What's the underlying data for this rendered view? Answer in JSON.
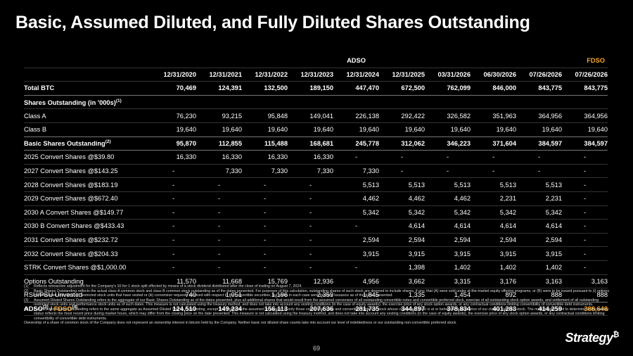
{
  "title": "Basic, Assumed Diluted, and Fully Diluted Shares Outstanding",
  "group_headers": {
    "adso": "ADSO",
    "fdso": "FDSO"
  },
  "columns": [
    "12/31/2020",
    "12/31/2021",
    "12/31/2022",
    "12/31/2023",
    "12/31/2024",
    "12/31/2025",
    "03/31/2026",
    "06/30/2026",
    "07/26/2026",
    "07/26/2026"
  ],
  "rows": {
    "total_btc": {
      "label": "Total BTC",
      "values": [
        "70,469",
        "124,391",
        "132,500",
        "189,150",
        "447,470",
        "672,500",
        "762,099",
        "846,000",
        "843,775",
        "843,775"
      ]
    },
    "shares_header": {
      "label": "Shares Outstanding (in '000s)",
      "sup": "(1)"
    },
    "class_a": {
      "label": "Class A",
      "values": [
        "76,230",
        "93,215",
        "95,848",
        "149,041",
        "226,138",
        "292,422",
        "326,582",
        "351,963",
        "364,956",
        "364,956"
      ]
    },
    "class_b": {
      "label": "Class B",
      "values": [
        "19,640",
        "19,640",
        "19,640",
        "19,640",
        "19,640",
        "19,640",
        "19,640",
        "19,640",
        "19,640",
        "19,640"
      ]
    },
    "basic": {
      "label": "Basic Shares Outstanding",
      "sup": "(2)",
      "values": [
        "95,870",
        "112,855",
        "115,488",
        "168,681",
        "245,778",
        "312,062",
        "346,223",
        "371,604",
        "384,597",
        "384,597"
      ]
    },
    "conv_2025": {
      "label": "2025 Convert Shares @$39.80",
      "values": [
        "16,330",
        "16,330",
        "16,330",
        "16,330",
        "-",
        "-",
        "-",
        "-",
        "-",
        "-"
      ]
    },
    "conv_2027": {
      "label": "2027 Convert Shares @$143.25",
      "values": [
        "-",
        "7,330",
        "7,330",
        "7,330",
        "7,330",
        "-",
        "-",
        "-",
        "-",
        "-"
      ]
    },
    "conv_2028": {
      "label": "2028 Convert Shares @$183.19",
      "values": [
        "-",
        "-",
        "-",
        "-",
        "5,513",
        "5,513",
        "5,513",
        "5,513",
        "5,513",
        "-"
      ]
    },
    "conv_2029": {
      "label": "2029 Convert Shares @$672.40",
      "values": [
        "-",
        "-",
        "-",
        "-",
        "4,462",
        "4,462",
        "4,462",
        "2,231",
        "2,231",
        "-"
      ]
    },
    "conv_2030a": {
      "label": "2030 A Convert Shares @$149.77",
      "values": [
        "-",
        "-",
        "-",
        "-",
        "5,342",
        "5,342",
        "5,342",
        "5,342",
        "5,342",
        "-"
      ]
    },
    "conv_2030b": {
      "label": "2030 B Convert Shares @$433.43",
      "values": [
        "-",
        "-",
        "-",
        "-",
        "-",
        "4,614",
        "4,614",
        "4,614",
        "4,614",
        "-"
      ]
    },
    "conv_2031": {
      "label": "2031 Convert Shares @$232.72",
      "values": [
        "-",
        "-",
        "-",
        "-",
        "2,594",
        "2,594",
        "2,594",
        "2,594",
        "2,594",
        "-"
      ]
    },
    "conv_2032": {
      "label": "2032 Convert Shares @$204.33",
      "values": [
        "-",
        "-",
        "-",
        "-",
        "3,915",
        "3,915",
        "3,915",
        "3,915",
        "3,915",
        "-"
      ]
    },
    "strk": {
      "label": "STRK Convert Shares @$1,000.00",
      "values": [
        "-",
        "-",
        "-",
        "-",
        "-",
        "1,398",
        "1,402",
        "1,402",
        "1,402",
        "-"
      ]
    },
    "options": {
      "label": "Options Outstanding",
      "values": [
        "11,570",
        "11,668",
        "15,769",
        "12,936",
        "4,956",
        "3,662",
        "3,315",
        "3,176",
        "3,163",
        "3,163"
      ]
    },
    "rsu": {
      "label": "RSU/PSU Unvested",
      "values": [
        "740",
        "1,051",
        "1,196",
        "2,359",
        "1,845",
        "1,335",
        "1,454",
        "892",
        "888",
        "888"
      ]
    },
    "total": {
      "label_a": "ADSO",
      "sup_a": "(3)",
      "sep": " / ",
      "label_b": "FDSO",
      "sup_b": "(4)",
      "values": [
        "124,510",
        "149,234",
        "156,113",
        "207,636",
        "281,735",
        "344,897",
        "378,834",
        "401,283",
        "414,259",
        "388,648"
      ]
    }
  },
  "footnotes": [
    {
      "num": "(1)",
      "text": "Reflects retroactive adjustment for the Company's 10-for-1 stock split effected by means of a stock dividend distributed after the close of trading on August 7, 2024."
    },
    {
      "num": "(2)",
      "text": "Basic Shares Outstanding reflects the actual class A common stock and class B common stock outstanding as of the dates presented. For purposes of this calculation, outstanding shares of such stock are deemed to include shares, if any, that (A) were sold under at-the-market equity offering programs, or (B) were to be issued pursuant to (i) options that had been exercised, (ii) restricted stock units that have vested or (iii) conversion requests received with respect to the convertible securities, but which in each case were pending issuance as of the dates presented."
    },
    {
      "num": "(3)",
      "text": "Assumed Diluted Shares Outstanding refers to the aggregate of our Basic Shares Outstanding as of the dates presented, plus all additional shares that would result from the assumed conversion of all outstanding convertible notes and convertible preferred stock, exercise of all outstanding stock option awards, and settlement of all outstanding restricted stock units and performance stock units as of such dates. This measure is not calculated using the treasury method, and does not take into account any vesting conditions (in the case of equity awards), the exercise price of any stock option awards, or any contractual conditions limiting convertibility of convertible debt instruments."
    },
    {
      "num": "(4)",
      "text": "Fully Diluted Shares Outstanding refers to the same aggregate as Assumed Diluted Shares Outstanding, except that it reflects the assumed conversion of only those convertible notes and convertible preferred stock whose conversion price is at or below the market price of our class A common stock. The market price used to determine in-the-money status reflects the most recent price during market hours, which may differ from the closing price on the date presented. This measure is not calculated using the treasury method, and does not take into account any vesting conditions (in the case of equity awards), the exercise price of any stock option awards, or any contractual conditions limiting convertibility of convertible debt instruments."
    }
  ],
  "ownership_note": "Ownership of a share of common stock of the Company does not represent an ownership interest in bitcoin held by the Company. Neither basic nor diluted share counts take into account our level of indebtedness or our outstanding non-convertible preferred stock.",
  "logo": {
    "text": "Strategy",
    "mark": "₿"
  },
  "page_number": "69"
}
